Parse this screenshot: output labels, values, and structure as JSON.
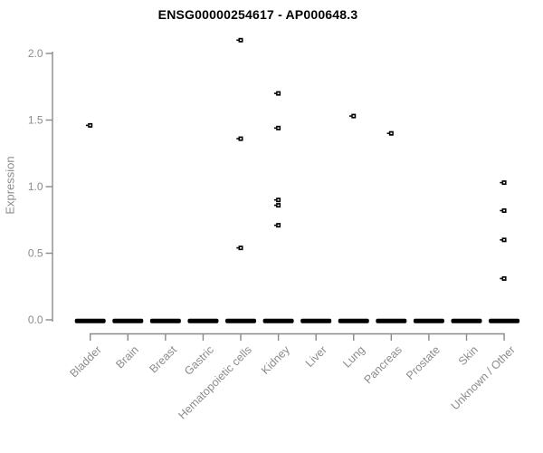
{
  "title": "ENSG00000254617 - AP000648.3",
  "y_axis": {
    "label": "Expression",
    "tick_labels": [
      "0.0",
      "0.5",
      "1.0",
      "1.5",
      "2.0"
    ],
    "tick_values": [
      0.0,
      0.5,
      1.0,
      1.5,
      2.0
    ]
  },
  "x_axis": {
    "categories": [
      "Bladder",
      "Brain",
      "Breast",
      "Gastric",
      "Hematopoietic cells",
      "Kidney",
      "Liver",
      "Lung",
      "Pancreas",
      "Prostate",
      "Skin",
      "Unknown / Other"
    ]
  },
  "chart_data": {
    "type": "scatter",
    "title": "ENSG00000254617 - AP000648.3",
    "xlabel": "",
    "ylabel": "Expression",
    "ylim": [
      0,
      2.1
    ],
    "grid": false,
    "legend": "none",
    "marker": "small open black square",
    "categories": [
      "Bladder",
      "Brain",
      "Breast",
      "Gastric",
      "Hematopoietic cells",
      "Kidney",
      "Liver",
      "Lung",
      "Pancreas",
      "Prostate",
      "Skin",
      "Unknown / Other"
    ],
    "points": [
      {
        "category": "Bladder",
        "value": 1.46
      },
      {
        "category": "Hematopoietic cells",
        "value": 2.1
      },
      {
        "category": "Hematopoietic cells",
        "value": 1.36
      },
      {
        "category": "Hematopoietic cells",
        "value": 0.54
      },
      {
        "category": "Kidney",
        "value": 1.7
      },
      {
        "category": "Kidney",
        "value": 1.44
      },
      {
        "category": "Kidney",
        "value": 0.9
      },
      {
        "category": "Kidney",
        "value": 0.86
      },
      {
        "category": "Kidney",
        "value": 0.71
      },
      {
        "category": "Lung",
        "value": 1.53
      },
      {
        "category": "Pancreas",
        "value": 1.4
      },
      {
        "category": "Unknown / Other",
        "value": 1.03
      },
      {
        "category": "Unknown / Other",
        "value": 0.82
      },
      {
        "category": "Unknown / Other",
        "value": 0.6
      },
      {
        "category": "Unknown / Other",
        "value": 0.31
      }
    ],
    "zero_bars": {
      "description": "thick black dash at 0.0 in every category (many overlapping samples with zero expression)",
      "value": 0.0,
      "categories": [
        "Bladder",
        "Brain",
        "Breast",
        "Gastric",
        "Hematopoietic cells",
        "Kidney",
        "Liver",
        "Lung",
        "Pancreas",
        "Prostate",
        "Skin",
        "Unknown / Other"
      ]
    }
  },
  "colors": {
    "background": "#ffffff",
    "title": "#000000",
    "axis_line": "#8a8a8a",
    "axis_text": "#8c8c8c",
    "point": "#000000"
  }
}
